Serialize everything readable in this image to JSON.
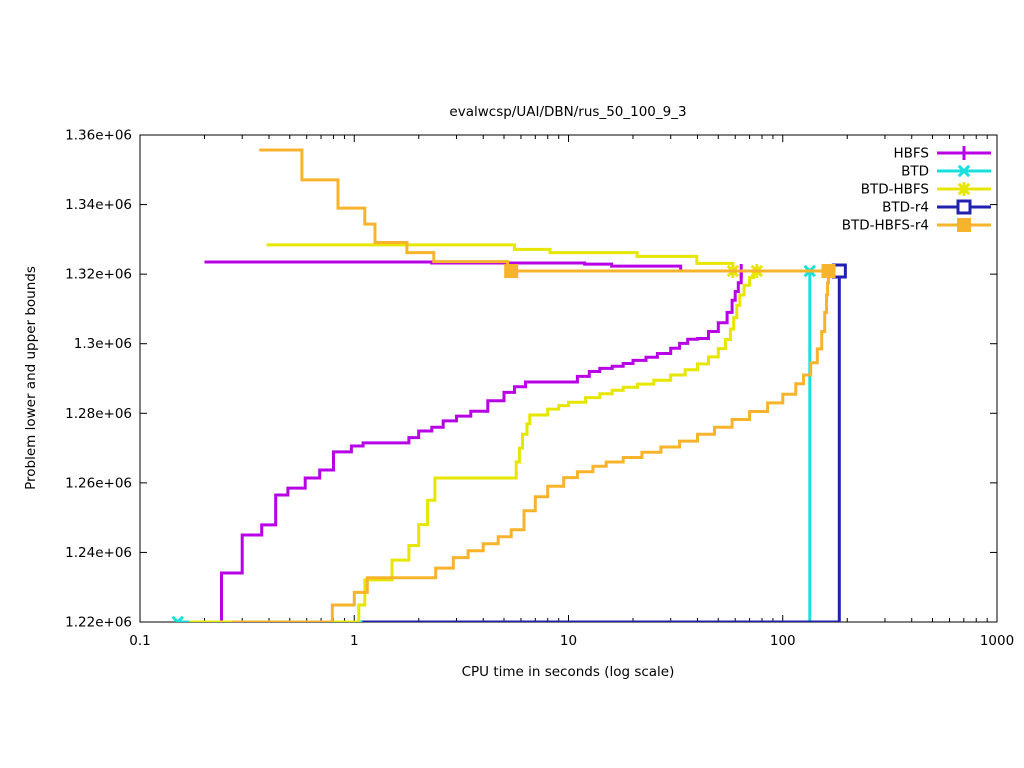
{
  "title": "evalwcsp/UAI/DBN/rus_50_100_9_3",
  "xlabel": "CPU time in seconds (log scale)",
  "ylabel": "Problem lower and upper bounds",
  "chart_data": {
    "type": "line",
    "x_scale": "log",
    "xlim": [
      0.1,
      1000
    ],
    "ylim": [
      1220000,
      1360000
    ],
    "grid": false,
    "legend_position": "top-right-inside",
    "x_ticks": [
      {
        "value": 0.1,
        "label": "0.1"
      },
      {
        "value": 1,
        "label": "1"
      },
      {
        "value": 10,
        "label": "10"
      },
      {
        "value": 100,
        "label": "100"
      },
      {
        "value": 1000,
        "label": "1000"
      }
    ],
    "y_ticks": [
      {
        "value": 1220000,
        "label": "1.22e+06"
      },
      {
        "value": 1240000,
        "label": "1.24e+06"
      },
      {
        "value": 1260000,
        "label": "1.26e+06"
      },
      {
        "value": 1280000,
        "label": "1.28e+06"
      },
      {
        "value": 1300000,
        "label": "1.3e+06"
      },
      {
        "value": 1320000,
        "label": "1.32e+06"
      },
      {
        "value": 1340000,
        "label": "1.34e+06"
      },
      {
        "value": 1360000,
        "label": "1.36e+06"
      }
    ],
    "optimum": 1320900,
    "series": [
      {
        "name": "HBFS",
        "color": "#b800e6",
        "marker": "plus",
        "upper": [
          [
            0.2,
            1323500
          ],
          [
            2.3,
            1323200
          ],
          [
            11.9,
            1322900
          ],
          [
            15.9,
            1322300
          ],
          [
            33.4,
            1320900
          ],
          [
            64,
            1320900
          ]
        ],
        "lower": [
          [
            0.2,
            1220000
          ],
          [
            0.24,
            1234100
          ],
          [
            0.3,
            1245000
          ],
          [
            0.37,
            1247900
          ],
          [
            0.43,
            1256500
          ],
          [
            0.49,
            1258500
          ],
          [
            0.59,
            1261400
          ],
          [
            0.69,
            1263700
          ],
          [
            0.8,
            1268900
          ],
          [
            0.97,
            1270600
          ],
          [
            1.1,
            1271500
          ],
          [
            1.8,
            1273000
          ],
          [
            2.0,
            1274900
          ],
          [
            2.3,
            1276000
          ],
          [
            2.6,
            1277800
          ],
          [
            3.0,
            1279200
          ],
          [
            3.5,
            1280600
          ],
          [
            4.2,
            1283600
          ],
          [
            5.0,
            1286000
          ],
          [
            5.6,
            1287600
          ],
          [
            6.3,
            1289000
          ],
          [
            11,
            1290600
          ],
          [
            12.5,
            1292000
          ],
          [
            14,
            1292900
          ],
          [
            16,
            1293500
          ],
          [
            18,
            1294300
          ],
          [
            20,
            1295200
          ],
          [
            23,
            1296100
          ],
          [
            26,
            1297200
          ],
          [
            30,
            1298700
          ],
          [
            33,
            1300100
          ],
          [
            36,
            1301300
          ],
          [
            40,
            1301500
          ],
          [
            45,
            1303500
          ],
          [
            50,
            1306000
          ],
          [
            55,
            1309000
          ],
          [
            58,
            1312500
          ],
          [
            60,
            1315000
          ],
          [
            62,
            1317500
          ],
          [
            64,
            1320900
          ]
        ],
        "marker_points": [
          [
            64,
            1320900
          ]
        ]
      },
      {
        "name": "BTD",
        "color": "#17e0dc",
        "marker": "cross",
        "upper": [],
        "lower": [
          [
            0.15,
            1220000
          ],
          [
            133.7,
            1220000
          ],
          [
            133.7,
            1320900
          ]
        ],
        "marker_points": [
          [
            0.15,
            1220000
          ],
          [
            133.7,
            1320900
          ]
        ]
      },
      {
        "name": "BTD-HBFS",
        "color": "#e6e600",
        "marker": "star",
        "upper": [
          [
            0.39,
            1328400
          ],
          [
            5.6,
            1327100
          ],
          [
            8.2,
            1326200
          ],
          [
            20.9,
            1325100
          ],
          [
            39.7,
            1323100
          ],
          [
            58.5,
            1320900
          ],
          [
            79.7,
            1320900
          ]
        ],
        "lower": [
          [
            0.17,
            1220000
          ],
          [
            1.05,
            1224900
          ],
          [
            1.12,
            1232100
          ],
          [
            1.5,
            1237800
          ],
          [
            1.8,
            1242000
          ],
          [
            2.0,
            1248000
          ],
          [
            2.2,
            1255000
          ],
          [
            2.38,
            1261400
          ],
          [
            5.7,
            1266000
          ],
          [
            5.9,
            1270000
          ],
          [
            6.1,
            1274000
          ],
          [
            6.4,
            1277000
          ],
          [
            6.6,
            1279500
          ],
          [
            8,
            1281200
          ],
          [
            9,
            1282200
          ],
          [
            10,
            1283200
          ],
          [
            12,
            1284500
          ],
          [
            14,
            1285600
          ],
          [
            16,
            1286600
          ],
          [
            18,
            1287500
          ],
          [
            21,
            1288400
          ],
          [
            25,
            1289500
          ],
          [
            30,
            1291000
          ],
          [
            35,
            1292500
          ],
          [
            40,
            1294200
          ],
          [
            45,
            1296200
          ],
          [
            50,
            1298600
          ],
          [
            54,
            1301200
          ],
          [
            57,
            1304200
          ],
          [
            59,
            1307500
          ],
          [
            61,
            1311000
          ],
          [
            63,
            1314000
          ],
          [
            66,
            1316800
          ],
          [
            70,
            1319000
          ],
          [
            73,
            1320200
          ],
          [
            75.7,
            1320900
          ],
          [
            79.7,
            1320900
          ]
        ],
        "marker_points": [
          [
            58.5,
            1320900
          ],
          [
            75.7,
            1320900
          ]
        ]
      },
      {
        "name": "BTD-r4",
        "color": "#2121af",
        "marker": "square-open",
        "upper": [],
        "lower": [
          [
            1.09,
            1220000
          ],
          [
            183.7,
            1220000
          ],
          [
            183.7,
            1320900
          ]
        ],
        "marker_points": [
          [
            183.7,
            1320900
          ]
        ]
      },
      {
        "name": "BTD-HBFS-r4",
        "color": "#f7b32c",
        "marker": "square-filled",
        "upper": [
          [
            0.36,
            1355700
          ],
          [
            0.57,
            1347100
          ],
          [
            0.84,
            1339000
          ],
          [
            1.12,
            1334400
          ],
          [
            1.25,
            1329100
          ],
          [
            1.76,
            1326200
          ],
          [
            2.35,
            1323600
          ],
          [
            5.2,
            1320900
          ],
          [
            163.5,
            1320900
          ]
        ],
        "lower": [
          [
            0.27,
            1220000
          ],
          [
            0.79,
            1224900
          ],
          [
            1.0,
            1228500
          ],
          [
            1.15,
            1232700
          ],
          [
            2.4,
            1235500
          ],
          [
            2.9,
            1238500
          ],
          [
            3.4,
            1240500
          ],
          [
            4.0,
            1242500
          ],
          [
            4.7,
            1244500
          ],
          [
            5.4,
            1246500
          ],
          [
            6.2,
            1252000
          ],
          [
            7.0,
            1256000
          ],
          [
            8.0,
            1259000
          ],
          [
            9.5,
            1261500
          ],
          [
            11,
            1263200
          ],
          [
            13,
            1264800
          ],
          [
            15,
            1266000
          ],
          [
            18,
            1267300
          ],
          [
            22,
            1268800
          ],
          [
            27,
            1270300
          ],
          [
            33,
            1272000
          ],
          [
            40,
            1274000
          ],
          [
            48,
            1276000
          ],
          [
            58,
            1278200
          ],
          [
            70,
            1280500
          ],
          [
            85,
            1283000
          ],
          [
            100,
            1285500
          ],
          [
            115,
            1288500
          ],
          [
            125,
            1291000
          ],
          [
            135,
            1294500
          ],
          [
            145,
            1298500
          ],
          [
            152,
            1303500
          ],
          [
            157,
            1309000
          ],
          [
            160,
            1314000
          ],
          [
            162,
            1317500
          ],
          [
            163.5,
            1320900
          ]
        ],
        "marker_points": [
          [
            5.4,
            1320900
          ],
          [
            163.5,
            1320900
          ]
        ]
      }
    ]
  }
}
